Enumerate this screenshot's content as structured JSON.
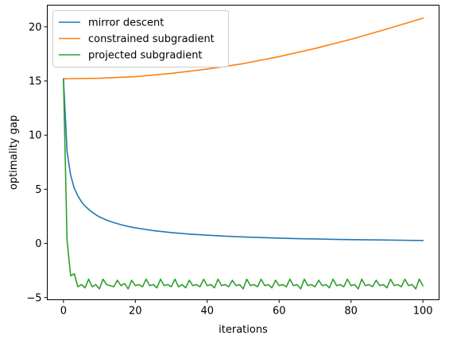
{
  "chart_data": {
    "type": "line",
    "title": "",
    "xlabel": "iterations",
    "ylabel": "optimality gap",
    "xlim": [
      -4.5,
      104.5
    ],
    "ylim": [
      -5.2,
      22
    ],
    "xticks": [
      0,
      20,
      40,
      60,
      80,
      100
    ],
    "yticks": [
      -5,
      0,
      5,
      10,
      15,
      20
    ],
    "grid": false,
    "legend": "top-left",
    "series": [
      {
        "name": "mirror descent",
        "color": "#1f77b4",
        "x": [
          0,
          1,
          2,
          3,
          4,
          5,
          6,
          7,
          8,
          9,
          10,
          12,
          14,
          16,
          18,
          20,
          25,
          30,
          35,
          40,
          45,
          50,
          55,
          60,
          65,
          70,
          75,
          80,
          85,
          90,
          95,
          100
        ],
        "y": [
          15.2,
          8.5,
          6.3,
          5.1,
          4.4,
          3.85,
          3.45,
          3.15,
          2.88,
          2.65,
          2.45,
          2.15,
          1.92,
          1.73,
          1.57,
          1.44,
          1.18,
          1.0,
          0.86,
          0.76,
          0.67,
          0.6,
          0.54,
          0.49,
          0.44,
          0.41,
          0.38,
          0.35,
          0.33,
          0.31,
          0.29,
          0.27
        ]
      },
      {
        "name": "constrained subgradient",
        "color": "#ff7f0e",
        "x": [
          0,
          10,
          20,
          30,
          40,
          50,
          60,
          70,
          80,
          90,
          100
        ],
        "y": [
          15.2,
          15.25,
          15.4,
          15.7,
          16.1,
          16.6,
          17.25,
          18.0,
          18.85,
          19.8,
          20.8
        ]
      },
      {
        "name": "projected subgradient",
        "color": "#2ca02c",
        "x": [
          0,
          1,
          2,
          3,
          4,
          5,
          6,
          7,
          8,
          9,
          10,
          11,
          12,
          13,
          14,
          15,
          16,
          17,
          18,
          19,
          20,
          21,
          22,
          23,
          24,
          25,
          26,
          27,
          28,
          29,
          30,
          31,
          32,
          33,
          34,
          35,
          36,
          37,
          38,
          39,
          40,
          41,
          42,
          43,
          44,
          45,
          46,
          47,
          48,
          49,
          50,
          51,
          52,
          53,
          54,
          55,
          56,
          57,
          58,
          59,
          60,
          61,
          62,
          63,
          64,
          65,
          66,
          67,
          68,
          69,
          70,
          71,
          72,
          73,
          74,
          75,
          76,
          77,
          78,
          79,
          80,
          81,
          82,
          83,
          84,
          85,
          86,
          87,
          88,
          89,
          90,
          91,
          92,
          93,
          94,
          95,
          96,
          97,
          98,
          99,
          100
        ],
        "y": [
          15.2,
          0.3,
          -3.0,
          -2.8,
          -4.0,
          -3.8,
          -4.1,
          -3.3,
          -4.0,
          -3.8,
          -4.2,
          -3.3,
          -3.8,
          -3.9,
          -4.0,
          -3.4,
          -3.9,
          -3.7,
          -4.2,
          -3.4,
          -3.9,
          -3.8,
          -4.0,
          -3.3,
          -3.9,
          -3.8,
          -4.1,
          -3.3,
          -3.9,
          -3.8,
          -4.0,
          -3.3,
          -4.0,
          -3.8,
          -4.1,
          -3.4,
          -3.9,
          -3.8,
          -4.0,
          -3.3,
          -3.9,
          -3.8,
          -4.1,
          -3.3,
          -3.9,
          -3.8,
          -4.0,
          -3.4,
          -3.9,
          -3.8,
          -4.2,
          -3.3,
          -3.9,
          -3.8,
          -4.0,
          -3.3,
          -3.9,
          -3.8,
          -4.1,
          -3.4,
          -3.9,
          -3.8,
          -4.0,
          -3.3,
          -3.9,
          -3.8,
          -4.2,
          -3.3,
          -3.9,
          -3.8,
          -4.0,
          -3.4,
          -3.9,
          -3.8,
          -4.1,
          -3.3,
          -3.9,
          -3.8,
          -4.0,
          -3.3,
          -3.9,
          -3.8,
          -4.2,
          -3.3,
          -3.9,
          -3.8,
          -4.0,
          -3.4,
          -3.9,
          -3.8,
          -4.1,
          -3.3,
          -3.9,
          -3.8,
          -4.0,
          -3.3,
          -3.9,
          -3.8,
          -4.2,
          -3.3,
          -3.9
        ]
      }
    ]
  }
}
